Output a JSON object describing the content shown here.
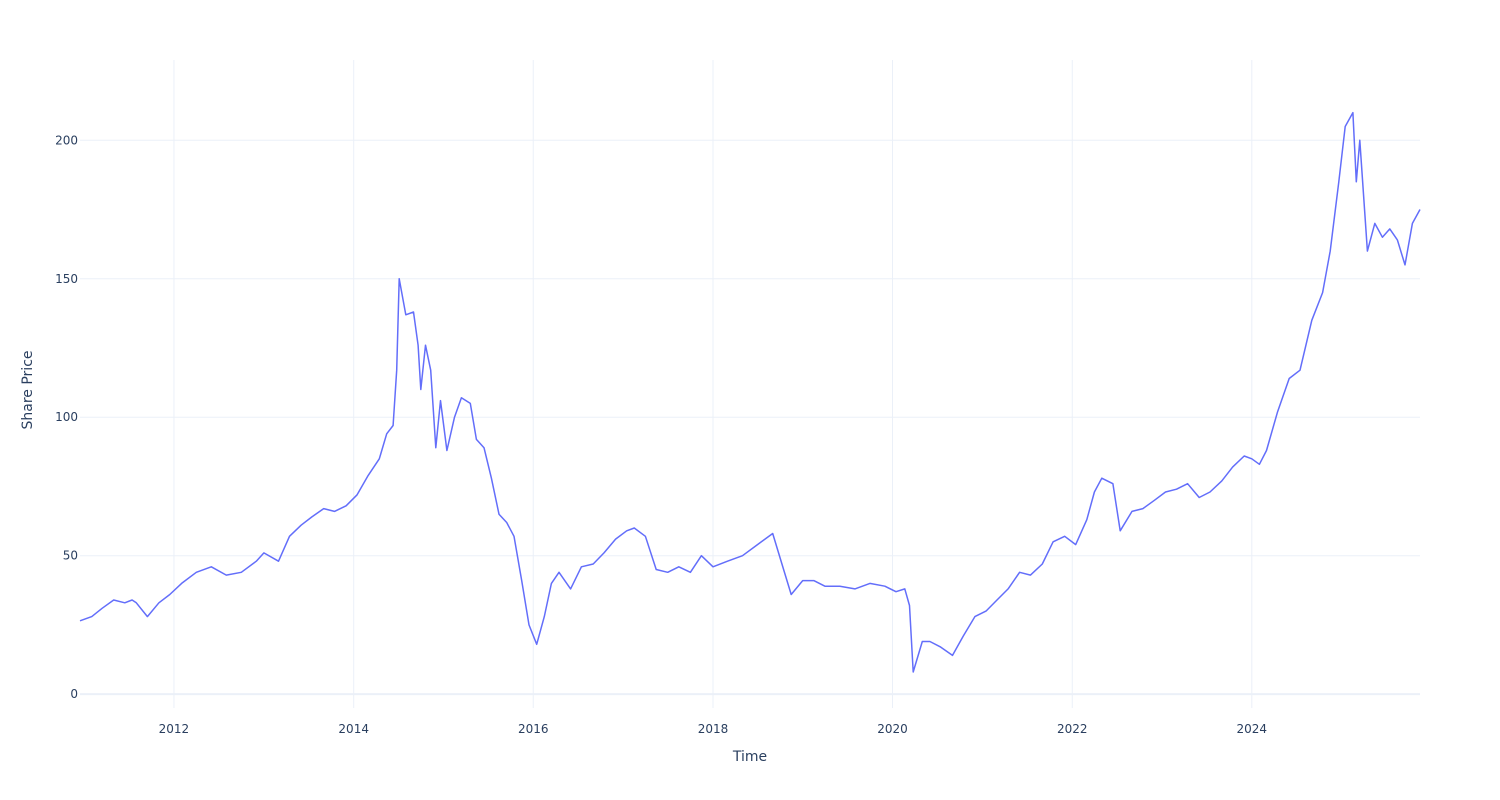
{
  "chart_data": {
    "type": "line",
    "title": "",
    "xlabel": "Time",
    "ylabel": "Share Price",
    "xlim": [
      "2010-12-15",
      "2025-11-15"
    ],
    "ylim": [
      -5,
      229
    ],
    "x_ticks": [
      {
        "label": "2012",
        "value": "2012-01-01"
      },
      {
        "label": "2014",
        "value": "2014-01-01"
      },
      {
        "label": "2016",
        "value": "2016-01-01"
      },
      {
        "label": "2018",
        "value": "2018-01-01"
      },
      {
        "label": "2020",
        "value": "2020-01-01"
      },
      {
        "label": "2022",
        "value": "2022-01-01"
      },
      {
        "label": "2024",
        "value": "2024-01-01"
      }
    ],
    "y_ticks": [
      0,
      50,
      100,
      150,
      200
    ],
    "grid": true,
    "legend": "none",
    "line_color": "#636efa",
    "series": [
      {
        "x": [
          "2010-12-15",
          "2011-02-01",
          "2011-03-15",
          "2011-05-01",
          "2011-06-15",
          "2011-07-15",
          "2011-08-01",
          "2011-09-15",
          "2011-11-01",
          "2011-12-15",
          "2012-02-01",
          "2012-04-01",
          "2012-06-01",
          "2012-08-01",
          "2012-10-01",
          "2012-12-01",
          "2013-01-01",
          "2013-03-01",
          "2013-04-15",
          "2013-06-01",
          "2013-07-15",
          "2013-09-01",
          "2013-10-15",
          "2013-12-01",
          "2014-01-15",
          "2014-03-01",
          "2014-04-15",
          "2014-05-15",
          "2014-06-10",
          "2014-06-25",
          "2014-07-05",
          "2014-08-01",
          "2014-09-01",
          "2014-09-20",
          "2014-10-01",
          "2014-10-20",
          "2014-11-10",
          "2014-12-01",
          "2014-12-20",
          "2015-01-15",
          "2015-02-15",
          "2015-03-15",
          "2015-04-20",
          "2015-05-15",
          "2015-06-15",
          "2015-07-15",
          "2015-08-15",
          "2015-09-15",
          "2015-10-15",
          "2015-11-15",
          "2015-12-15",
          "2016-01-15",
          "2016-02-15",
          "2016-03-15",
          "2016-04-15",
          "2016-06-01",
          "2016-07-15",
          "2016-09-01",
          "2016-10-15",
          "2016-12-01",
          "2017-01-15",
          "2017-02-15",
          "2017-04-01",
          "2017-05-15",
          "2017-07-01",
          "2017-08-15",
          "2017-10-01",
          "2017-11-15",
          "2018-01-01",
          "2018-03-01",
          "2018-05-01",
          "2018-07-01",
          "2018-09-01",
          "2018-10-15",
          "2018-11-15",
          "2019-01-01",
          "2019-02-15",
          "2019-04-01",
          "2019-06-01",
          "2019-08-01",
          "2019-10-01",
          "2019-12-01",
          "2020-01-15",
          "2020-02-20",
          "2020-03-10",
          "2020-03-25",
          "2020-05-01",
          "2020-06-01",
          "2020-07-15",
          "2020-09-01",
          "2020-10-15",
          "2020-12-01",
          "2021-01-15",
          "2021-03-01",
          "2021-04-15",
          "2021-06-01",
          "2021-07-15",
          "2021-09-01",
          "2021-10-15",
          "2021-12-01",
          "2022-01-15",
          "2022-03-01",
          "2022-04-01",
          "2022-05-01",
          "2022-06-15",
          "2022-07-15",
          "2022-09-01",
          "2022-10-15",
          "2022-12-01",
          "2023-01-15",
          "2023-03-01",
          "2023-04-15",
          "2023-06-01",
          "2023-07-15",
          "2023-09-01",
          "2023-10-15",
          "2023-12-01",
          "2024-01-01",
          "2024-02-01",
          "2024-03-01",
          "2024-04-15",
          "2024-06-01",
          "2024-07-15",
          "2024-09-01",
          "2024-10-15",
          "2024-11-15",
          "2024-12-20",
          "2025-01-15",
          "2025-02-15",
          "2025-03-01",
          "2025-03-15",
          "2025-04-15",
          "2025-05-15",
          "2025-06-15",
          "2025-07-15",
          "2025-08-15",
          "2025-09-15",
          "2025-10-15",
          "2025-11-15"
        ],
        "y": [
          26.5,
          28,
          31,
          34,
          33,
          34,
          33,
          28,
          33,
          36,
          40,
          44,
          46,
          43,
          44,
          48,
          51,
          48,
          57,
          61,
          64,
          67,
          66,
          68,
          72,
          79,
          85,
          94,
          97,
          117,
          150,
          137,
          138,
          126,
          110,
          126,
          117,
          89,
          106,
          88,
          100,
          107,
          105,
          92,
          89,
          78,
          65,
          62,
          57,
          41,
          25,
          18,
          28,
          40,
          44,
          38,
          46,
          47,
          51,
          56,
          59,
          60,
          57,
          45,
          44,
          46,
          44,
          50,
          46,
          48,
          50,
          54,
          58,
          45,
          36,
          41,
          41,
          39,
          39,
          38,
          40,
          39,
          37,
          38,
          32,
          8,
          19,
          19,
          17,
          14,
          21,
          28,
          30,
          34,
          38,
          44,
          43,
          47,
          55,
          57,
          54,
          63,
          73,
          78,
          76,
          59,
          66,
          67,
          70,
          73,
          74,
          76,
          71,
          73,
          77,
          82,
          86,
          85,
          83,
          88,
          102,
          114,
          117,
          135,
          145,
          160,
          185,
          205,
          210,
          185,
          200,
          160,
          170,
          165,
          168,
          164,
          155,
          170,
          175
        ]
      }
    ]
  }
}
